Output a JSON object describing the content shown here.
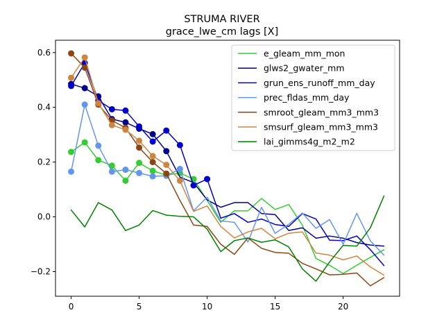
{
  "chart_data": {
    "type": "line",
    "title": "STRUMA RIVER",
    "subtitle": "grace_lwe_cm lags [X]",
    "xlabel": "",
    "ylabel": "",
    "xlim": [
      -1.15,
      24.15
    ],
    "ylim": [
      -0.29,
      0.645
    ],
    "xticks": [
      0,
      5,
      10,
      15,
      20
    ],
    "yticks": [
      -0.2,
      0.0,
      0.2,
      0.4,
      0.6
    ],
    "xtick_labels": [
      "0",
      "5",
      "10",
      "15",
      "20"
    ],
    "ytick_labels": [
      "−0.2",
      "0.0",
      "0.2",
      "0.4",
      "0.6"
    ],
    "grid": false,
    "legend_position": "top-right",
    "x": [
      0,
      1,
      2,
      3,
      4,
      5,
      6,
      7,
      8,
      9,
      10,
      11,
      12,
      13,
      14,
      15,
      16,
      17,
      18,
      19,
      20,
      21,
      22,
      23
    ],
    "series": [
      {
        "name": "e_gleam_mm_mon",
        "color": "#32cd32",
        "values": [
          0.237,
          0.272,
          0.207,
          0.187,
          0.132,
          0.197,
          0.168,
          0.152,
          0.16,
          0.138,
          0.06,
          -0.02,
          0.022,
          0.022,
          0.067,
          0.027,
          0.045,
          -0.03,
          -0.152,
          -0.177,
          -0.207,
          -0.177,
          -0.148,
          -0.12
        ],
        "markers": [
          0,
          1,
          2,
          3,
          4,
          5,
          6,
          7,
          8,
          9
        ]
      },
      {
        "name": "glws2_gwater_mm",
        "color": "#00008b",
        "values": [
          0.485,
          0.47,
          0.44,
          0.357,
          0.345,
          0.322,
          0.302,
          0.24,
          0.145,
          0.125,
          0.062,
          0.035,
          0.052,
          0.052,
          0.012,
          0.008,
          -0.05,
          -0.04,
          -0.078,
          -0.07,
          -0.078,
          -0.094,
          -0.103,
          -0.107
        ],
        "markers": [
          0,
          1,
          2,
          3,
          4,
          5,
          6,
          7
        ]
      },
      {
        "name": "grun_ens_runoff_mm_day",
        "color": "#0000cd",
        "values": [
          0.478,
          0.562,
          0.425,
          0.393,
          0.388,
          0.33,
          0.275,
          0.315,
          0.262,
          0.115,
          0.138,
          -0.005,
          0.012,
          -0.02,
          -0.008,
          -0.028,
          -0.035,
          0.012,
          -0.008,
          -0.085,
          -0.087,
          -0.07,
          -0.12,
          -0.178
        ],
        "markers": [
          0,
          1,
          2,
          3,
          4,
          5,
          6,
          7,
          8,
          9,
          10
        ]
      },
      {
        "name": "prec_fldas_mm_day",
        "color": "#6495ed",
        "values": [
          0.165,
          0.41,
          0.26,
          0.165,
          0.172,
          0.16,
          0.148,
          0.15,
          0.175,
          0.022,
          0.072,
          -0.015,
          -0.02,
          -0.092,
          0.035,
          -0.06,
          -0.027,
          0.014,
          -0.042,
          -0.01,
          -0.1,
          0.013,
          -0.088,
          -0.14
        ],
        "markers": [
          0,
          1,
          2,
          3,
          4,
          5,
          6,
          7,
          8
        ]
      },
      {
        "name": "smroot_gleam_mm3_mm3",
        "color": "#8b4513",
        "values": [
          0.597,
          0.545,
          0.41,
          0.352,
          0.325,
          0.253,
          0.2,
          0.158,
          0.06,
          -0.03,
          -0.035,
          -0.1,
          -0.137,
          -0.077,
          -0.115,
          -0.13,
          -0.133,
          -0.17,
          -0.19,
          -0.212,
          -0.21,
          -0.205,
          -0.252,
          -0.222
        ],
        "markers": [
          0,
          1,
          2,
          3,
          4,
          5,
          6,
          7
        ]
      },
      {
        "name": "smsurf_gleam_mm3_mm3",
        "color": "#cd853f",
        "values": [
          0.508,
          0.582,
          0.415,
          0.335,
          0.318,
          0.278,
          0.222,
          0.19,
          0.132,
          0.02,
          0.04,
          -0.035,
          -0.077,
          -0.055,
          -0.042,
          -0.08,
          -0.06,
          -0.055,
          -0.132,
          -0.14,
          -0.157,
          -0.143,
          -0.183,
          -0.213
        ],
        "markers": [
          0,
          1,
          2,
          3,
          4,
          5,
          6,
          7,
          8
        ]
      },
      {
        "name": "lai_gimms4g_m2_m2",
        "color": "#008000",
        "values": [
          0.025,
          -0.037,
          0.052,
          0.025,
          -0.05,
          -0.03,
          0.023,
          0.006,
          0.002,
          0.0,
          -0.045,
          -0.127,
          -0.087,
          -0.077,
          -0.093,
          -0.084,
          -0.11,
          -0.19,
          -0.235,
          -0.165,
          -0.104,
          -0.107,
          -0.04,
          0.076
        ],
        "markers": []
      }
    ]
  }
}
